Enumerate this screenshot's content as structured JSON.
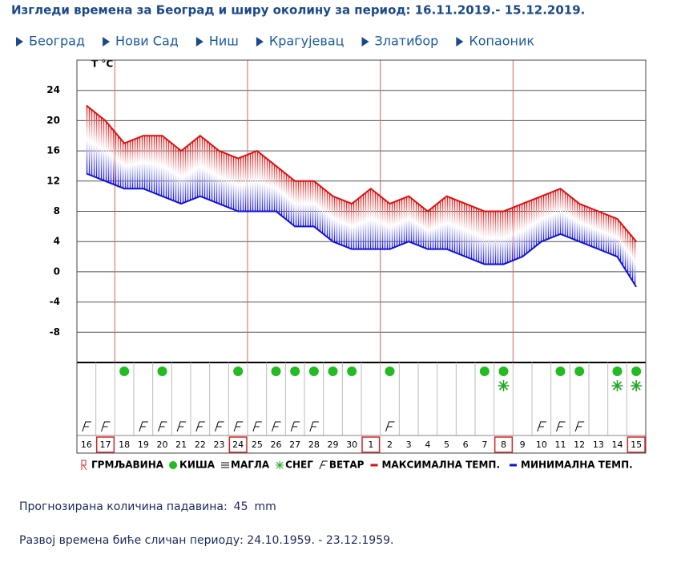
{
  "header": {
    "title": "Изгледи времена за Београд и ширу околину за период: 16.11.2019.- 15.12.2019."
  },
  "nav": [
    "Београд",
    "Нови Сад",
    "Ниш",
    "Крагујевац",
    "Златибор",
    "Копаоник"
  ],
  "chart_data": {
    "type": "line",
    "y_label": "T °C",
    "categories": [
      "16",
      "17",
      "18",
      "19",
      "20",
      "21",
      "22",
      "23",
      "24",
      "25",
      "26",
      "27",
      "28",
      "29",
      "30",
      "1",
      "2",
      "3",
      "4",
      "5",
      "6",
      "7",
      "8",
      "9",
      "10",
      "11",
      "12",
      "13",
      "14",
      "15"
    ],
    "series": [
      {
        "name": "МАКСИМАЛНА ТЕМП.",
        "color": "#dd1111",
        "values": [
          22,
          20,
          17,
          18,
          18,
          16,
          18,
          16,
          15,
          16,
          14,
          12,
          12,
          10,
          9,
          11,
          9,
          10,
          8,
          10,
          9,
          8,
          8,
          9,
          10,
          11,
          9,
          8,
          7,
          4
        ]
      },
      {
        "name": "МИНИМАЛНА ТЕМП.",
        "color": "#1111dd",
        "values": [
          13,
          12,
          11,
          11,
          10,
          9,
          10,
          9,
          8,
          8,
          8,
          6,
          6,
          4,
          3,
          3,
          3,
          4,
          3,
          3,
          2,
          1,
          1,
          2,
          4,
          5,
          4,
          3,
          2,
          -2
        ]
      }
    ],
    "rain": [
      false,
      false,
      true,
      false,
      true,
      false,
      false,
      false,
      true,
      false,
      true,
      true,
      true,
      true,
      true,
      false,
      true,
      false,
      false,
      false,
      false,
      true,
      true,
      false,
      false,
      true,
      true,
      false,
      true,
      true
    ],
    "snow": [
      false,
      false,
      false,
      false,
      false,
      false,
      false,
      false,
      false,
      false,
      false,
      false,
      false,
      false,
      false,
      false,
      false,
      false,
      false,
      false,
      false,
      false,
      true,
      false,
      false,
      false,
      false,
      false,
      true,
      true
    ],
    "wind": [
      true,
      true,
      false,
      true,
      true,
      true,
      true,
      true,
      true,
      true,
      true,
      true,
      true,
      false,
      false,
      false,
      true,
      false,
      false,
      false,
      false,
      false,
      false,
      false,
      true,
      true,
      true,
      false,
      false,
      false
    ],
    "ylim": [
      -12,
      28
    ],
    "yticks": [
      -8,
      -4,
      0,
      4,
      8,
      12,
      16,
      20,
      24
    ],
    "grid": true,
    "legend": [
      "ГРМЉАВИНА",
      "КИША",
      "МАГЛА",
      "СНЕГ",
      "ВЕТАР"
    ]
  },
  "footer": {
    "precipitation": {
      "label": "Прогнозирана количина падавина:",
      "value": 45,
      "unit": "mm"
    },
    "similar": "Развој времена биће сличан периоду: 24.10.1959. - 23.12.1959."
  }
}
